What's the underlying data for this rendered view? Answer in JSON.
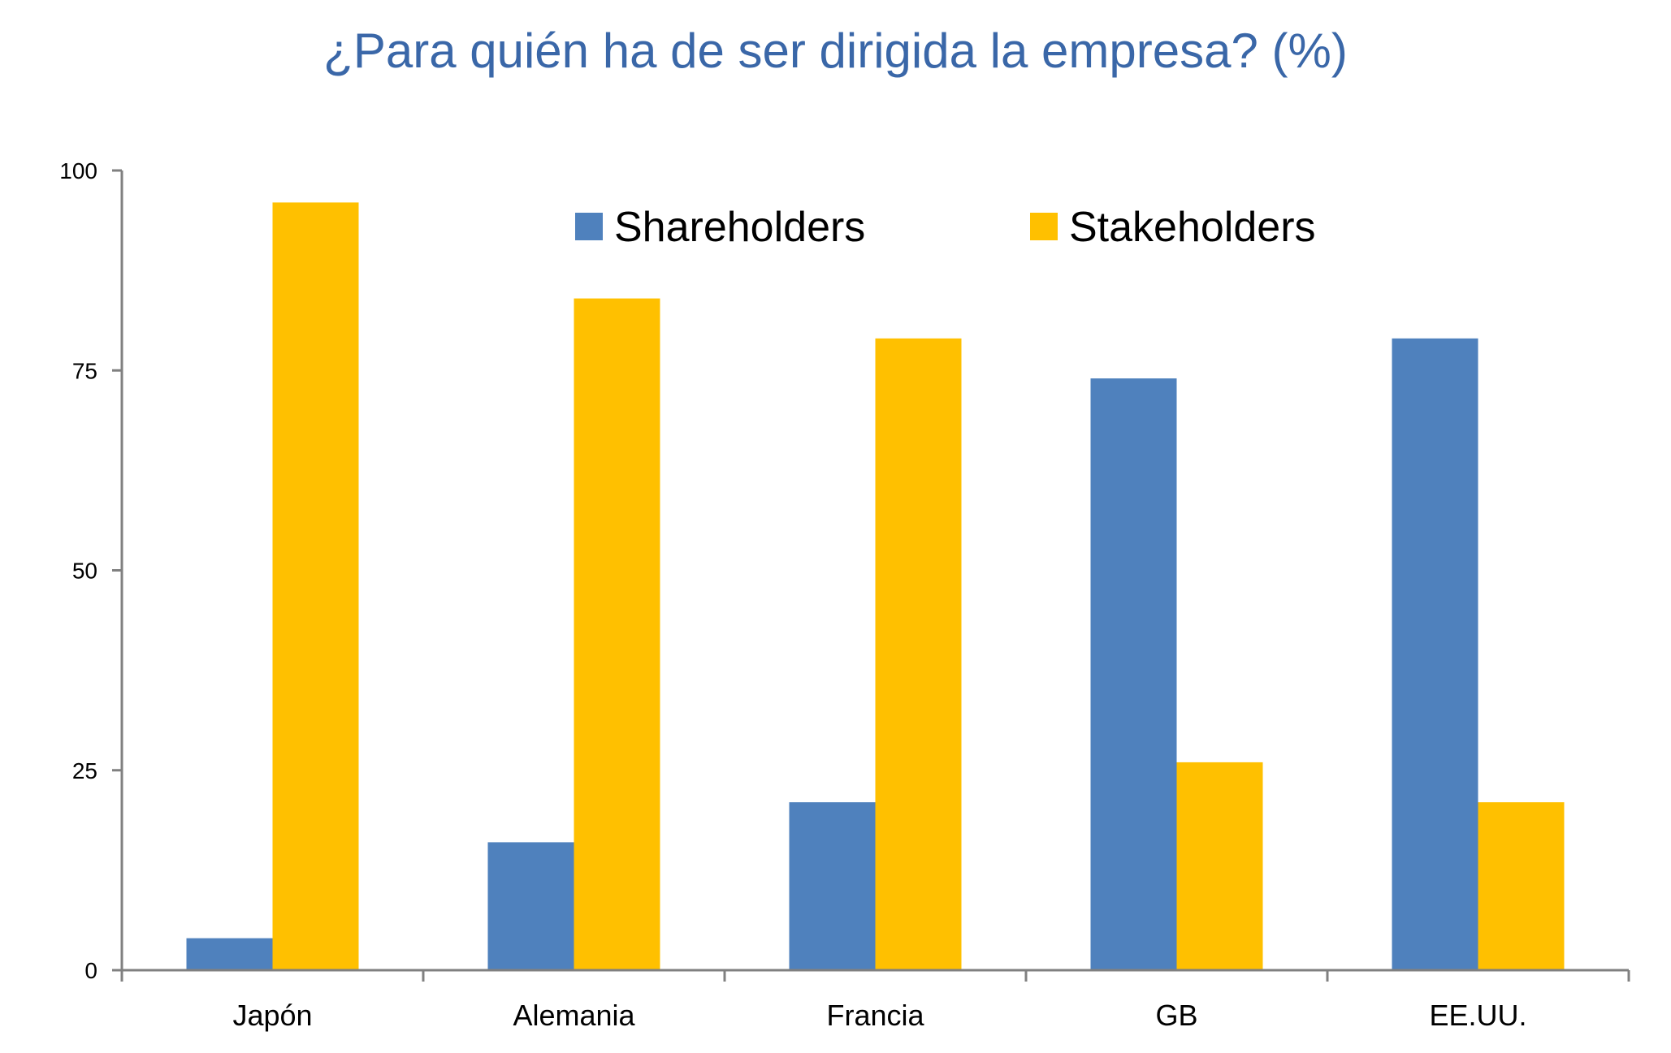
{
  "chart_data": {
    "type": "bar",
    "title": "¿Para quién ha de ser dirigida la empresa? (%)",
    "xlabel": "",
    "ylabel": "",
    "categories": [
      "Japón",
      "Alemania",
      "Francia",
      "GB",
      "EE.UU."
    ],
    "series": [
      {
        "name": "Shareholders",
        "color": "#4F81BD",
        "values": [
          4,
          16,
          21,
          74,
          79
        ]
      },
      {
        "name": "Stakeholders",
        "color": "#FFC000",
        "values": [
          96,
          84,
          79,
          26,
          21
        ]
      }
    ],
    "ylim": [
      0,
      100
    ],
    "yticks": [
      0,
      25,
      50,
      75,
      100
    ],
    "ytick_labels": [
      "0",
      "25",
      "50",
      "75",
      "100"
    ],
    "grid": false,
    "legend_position": "top-right"
  },
  "colors": {
    "title": "#3A67A8",
    "axis": "#808080"
  }
}
